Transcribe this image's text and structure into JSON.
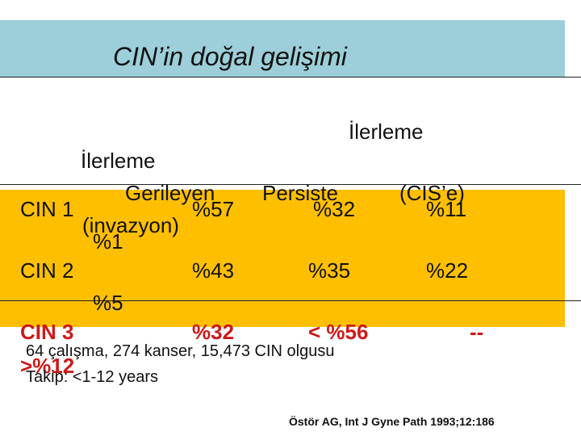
{
  "title": "CIN’in doğal gelişimi",
  "headers": {
    "ilerleme_invazyon": "İlerleme",
    "ilerleme_cis": "İlerleme",
    "gerileyen": "Gerileyen",
    "persiste": "Persiste",
    "cis": "(CIS’e)",
    "invazyon": "(invazyon)"
  },
  "rows": [
    {
      "label": "CIN 1",
      "gerileyen": "%57",
      "persiste": "%32",
      "cis": "%11",
      "invazyon": "%1"
    },
    {
      "label": "CIN 2",
      "gerileyen": "%43",
      "persiste": "%35",
      "cis": "%22",
      "invazyon": "%5"
    },
    {
      "label": "CIN 3",
      "gerileyen": "%32",
      "persiste": "< %56",
      "cis": "--",
      "invazyon": ">%12"
    }
  ],
  "footnote1": "64 çalışma, 274 kanser, 15,473 CIN olgusu",
  "footnote2": "Takip: <1-12 years",
  "reference": "Östör AG, Int J Gyne Path 1993;12:186",
  "colors": {
    "title_band": "#9ccfd9",
    "table_band": "#fdbf00",
    "cin3_text": "#cc1a1a"
  }
}
